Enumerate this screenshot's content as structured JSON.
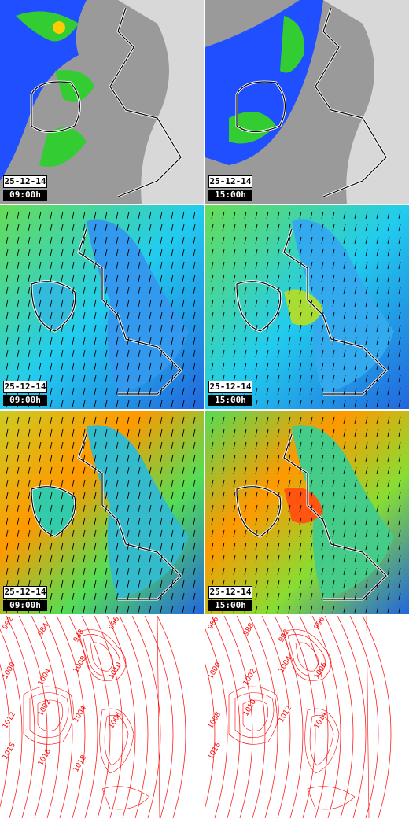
{
  "panels": [
    {
      "id": "precip-0900",
      "kind": "precip",
      "date": "25-12-14",
      "time": "09:00h"
    },
    {
      "id": "precip-1500",
      "kind": "precip",
      "date": "25-12-14",
      "time": "15:00h"
    },
    {
      "id": "wind-low-0900",
      "kind": "wind",
      "date": "25-12-14",
      "time": "09:00h"
    },
    {
      "id": "wind-low-1500",
      "kind": "wind",
      "date": "25-12-14",
      "time": "15:00h"
    },
    {
      "id": "wind-high-0900",
      "kind": "wind-strong",
      "date": "25-12-14",
      "time": "09:00h"
    },
    {
      "id": "wind-high-1500",
      "kind": "wind-strong",
      "date": "25-12-14",
      "time": "15:00h"
    },
    {
      "id": "pressure-0900",
      "kind": "pressure"
    },
    {
      "id": "pressure-1500",
      "kind": "pressure"
    }
  ],
  "pressure_labels_left": [
    "992",
    "984",
    "988",
    "996",
    "1000",
    "1004",
    "1008",
    "1010",
    "1012",
    "1002",
    "1004",
    "1006",
    "1015",
    "1016",
    "1018"
  ],
  "pressure_labels_right": [
    "986",
    "988",
    "992",
    "996",
    "1000",
    "1002",
    "1004",
    "1006",
    "1008",
    "1010",
    "1012",
    "1014",
    "1016"
  ],
  "colors": {
    "sea_grey": "#9a9a9a",
    "land_light": "#e6e6e6",
    "rain_blue": "#1f4fff",
    "rain_green": "#33cc33",
    "wind_cyan": "#22ccee",
    "wind_green": "#55dd55",
    "wind_orange": "#ff9900",
    "isobar_red": "#ff0000"
  }
}
